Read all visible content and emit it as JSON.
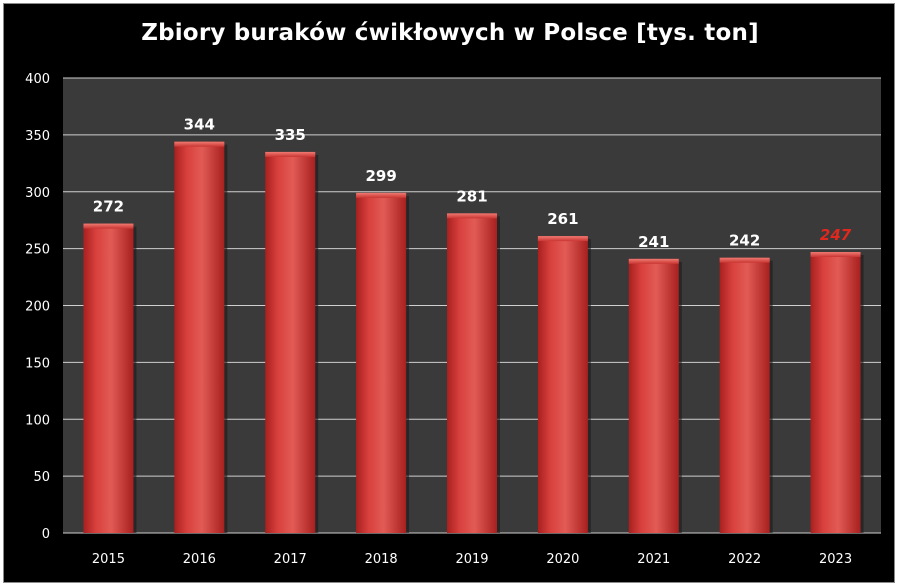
{
  "chart_data": {
    "type": "bar",
    "title": "Zbiory buraków ćwikłowych w Polsce [tys. ton]",
    "categories": [
      "2015",
      "2016",
      "2017",
      "2018",
      "2019",
      "2020",
      "2021",
      "2022",
      "2023"
    ],
    "values": [
      272,
      344,
      335,
      299,
      281,
      261,
      241,
      242,
      247
    ],
    "ylim": [
      0,
      400
    ],
    "yticks": [
      0,
      50,
      100,
      150,
      200,
      250,
      300,
      350,
      400
    ],
    "grid": true,
    "highlight_index": 8,
    "colors": {
      "background": "#000000",
      "plot_area": "#3a3a3a",
      "grid": "#cfcfcf",
      "bar": "#d8403d",
      "bar_light": "#e25b55",
      "bar_dark": "#a8201f",
      "label": "#ffffff",
      "highlight_label": "#e0281e"
    }
  }
}
